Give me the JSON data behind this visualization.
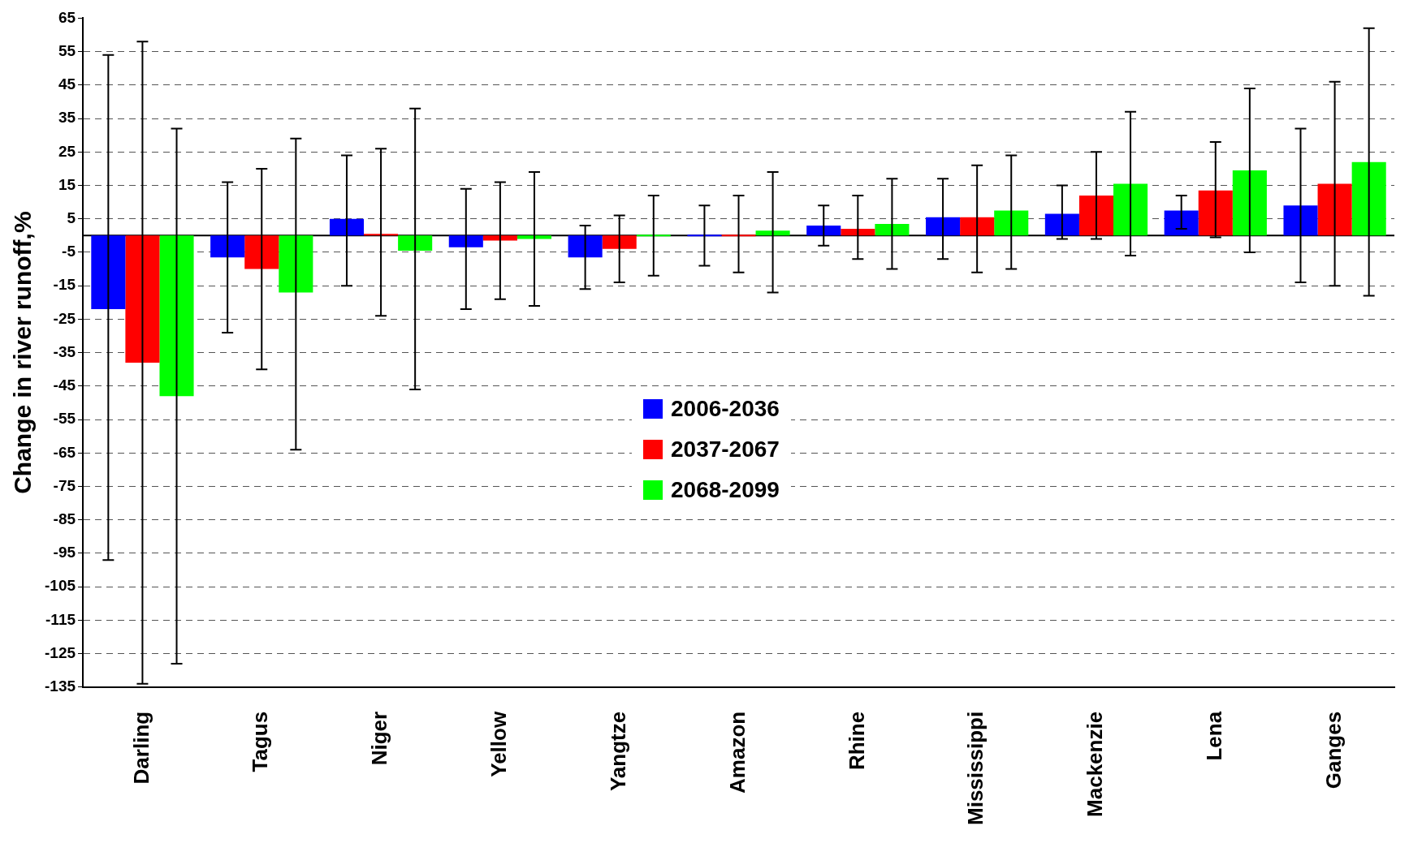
{
  "chart_data": {
    "type": "bar",
    "ylabel": "Change in river runoff,%",
    "categories": [
      "Darling",
      "Tagus",
      "Niger",
      "Yellow",
      "Yangtze",
      "Amazon",
      "Rhine",
      "Mississippi",
      "Mackenzie",
      "Lena",
      "Ganges"
    ],
    "series": [
      {
        "name": "2006-2036",
        "color": "#0000ff",
        "values": [
          -22,
          -6.5,
          5,
          -3.5,
          -6.5,
          0,
          3,
          5.5,
          6.5,
          7.5,
          9
        ],
        "errors": [
          [
            -97,
            54
          ],
          [
            -29,
            16
          ],
          [
            -15,
            24
          ],
          [
            -22,
            14
          ],
          [
            -16,
            3
          ],
          [
            -9,
            9
          ],
          [
            -3,
            9
          ],
          [
            -7,
            17
          ],
          [
            -1,
            15
          ],
          [
            2,
            12
          ],
          [
            -14,
            32
          ]
        ]
      },
      {
        "name": "2037-2067",
        "color": "#ff0000",
        "values": [
          -38,
          -10,
          0.5,
          -1.5,
          -4,
          0,
          2,
          5.5,
          12,
          13.5,
          15.5
        ],
        "errors": [
          [
            -134,
            58
          ],
          [
            -40,
            20
          ],
          [
            -24,
            26
          ],
          [
            -19,
            16
          ],
          [
            -14,
            6
          ],
          [
            -11,
            12
          ],
          [
            -7,
            12
          ],
          [
            -11,
            21
          ],
          [
            -1,
            25
          ],
          [
            -0.5,
            28
          ],
          [
            -15,
            46
          ]
        ]
      },
      {
        "name": "2068-2099",
        "color": "#00ff00",
        "values": [
          -48,
          -17,
          -4.5,
          -1,
          0,
          1.5,
          3.5,
          7.5,
          15.5,
          19.5,
          22
        ],
        "errors": [
          [
            -128,
            32
          ],
          [
            -64,
            29
          ],
          [
            -46,
            38
          ],
          [
            -21,
            19
          ],
          [
            -12,
            12
          ],
          [
            -17,
            19
          ],
          [
            -10,
            17
          ],
          [
            -10,
            24
          ],
          [
            -6,
            37
          ],
          [
            -5,
            44
          ],
          [
            -18,
            62
          ]
        ]
      }
    ],
    "ylim": [
      -135,
      65
    ],
    "yticks": [
      65,
      55,
      45,
      35,
      25,
      15,
      5,
      -5,
      -15,
      -25,
      -35,
      -45,
      -55,
      -65,
      -75,
      -85,
      -95,
      -105,
      -115,
      -125,
      -135
    ],
    "ref_lines": [
      {
        "axis": "y",
        "value": 0,
        "color": "#000000"
      }
    ],
    "grid": "y",
    "legend": "center"
  }
}
